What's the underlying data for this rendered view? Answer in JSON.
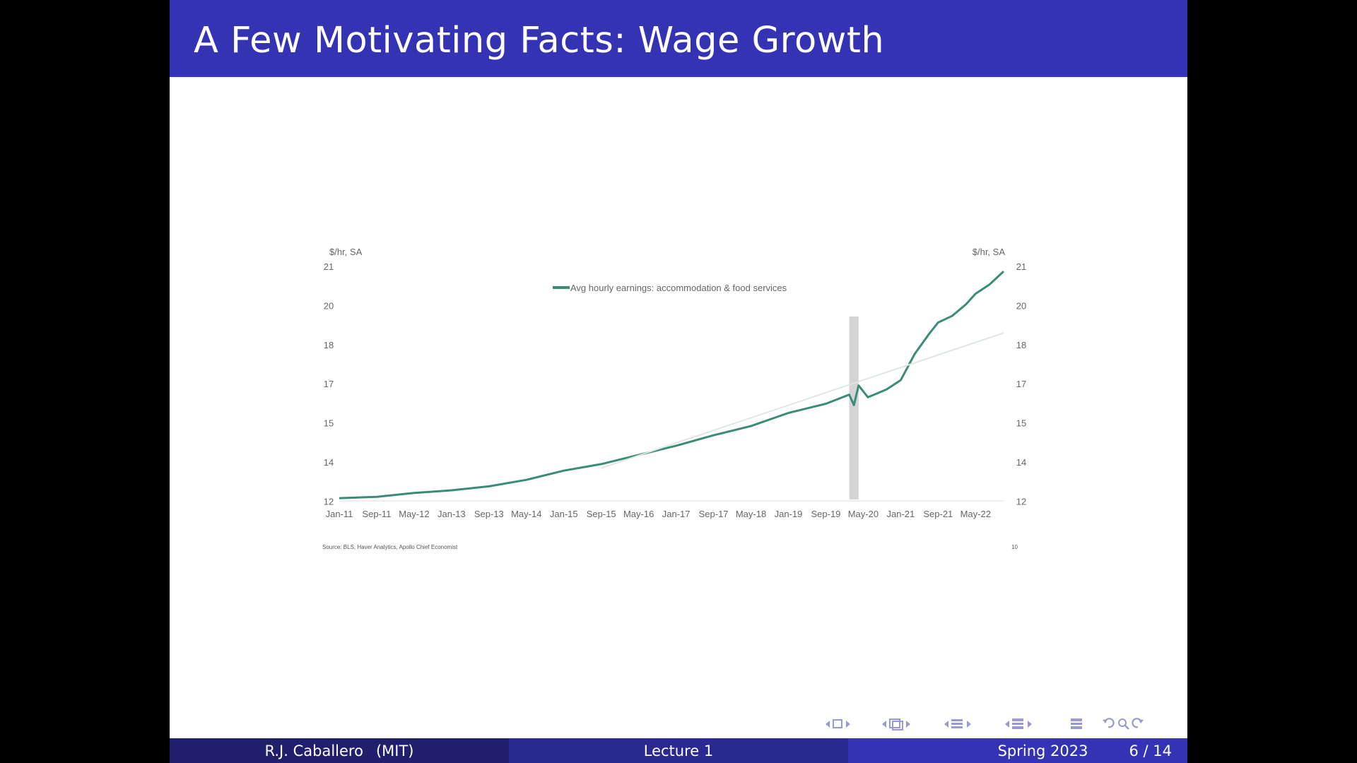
{
  "slide": {
    "title": "A Few Motivating Facts: Wage Growth"
  },
  "footer": {
    "author": "R.J. Caballero",
    "institution": "(MIT)",
    "lecture": "Lecture 1",
    "term": "Spring 2023",
    "page": "6 / 14"
  },
  "colors": {
    "title_bar": "#3333b3",
    "series_line": "#3a8c78",
    "trend_line": "#dfe7e3",
    "recession_bar": "#d4d4d4"
  },
  "nav_icons": [
    "nav-frame-icon",
    "nav-subsection-icon",
    "nav-section-icon",
    "nav-presentation-icon",
    "nav-toc-icon",
    "nav-back-icon",
    "nav-search-icon",
    "nav-forward-icon"
  ],
  "chart_data": {
    "type": "line",
    "left_axis_unit": "$/hr, SA",
    "right_axis_unit": "$/hr, SA",
    "y_tick_labels": [
      "21",
      "20",
      "18",
      "17",
      "15",
      "14",
      "12"
    ],
    "x_tick_labels": [
      "Jan-11",
      "Sep-11",
      "May-12",
      "Jan-13",
      "Sep-13",
      "May-14",
      "Jan-15",
      "Sep-15",
      "May-16",
      "Jan-17",
      "Sep-17",
      "May-18",
      "Jan-19",
      "Sep-19",
      "May-20",
      "Jan-21",
      "Sep-21",
      "May-22"
    ],
    "legend": "Avg hourly earnings: accommodation & food services",
    "legend_position": "top-center",
    "source": "Source: BLS, Haver Analytics, Apollo Chief Economist",
    "page_mark": "10",
    "grid": false,
    "recession_shading": {
      "start": "Feb-20",
      "end": "Apr-20"
    },
    "series": [
      {
        "name": "Avg hourly earnings: accommodation & food services",
        "x": [
          "Jan-11",
          "Sep-11",
          "May-12",
          "Jan-13",
          "Sep-13",
          "May-14",
          "Jan-15",
          "Sep-15",
          "May-16",
          "Jan-17",
          "Sep-17",
          "May-18",
          "Jan-19",
          "Sep-19",
          "Feb-20",
          "Mar-20",
          "Apr-20",
          "Jun-20",
          "Aug-20",
          "Oct-20",
          "Jan-21",
          "Apr-21",
          "Jul-21",
          "Sep-21",
          "Dec-21",
          "Mar-22",
          "May-22",
          "Aug-22",
          "Nov-22"
        ],
        "values": [
          12.05,
          12.1,
          12.25,
          12.35,
          12.5,
          12.75,
          13.1,
          13.35,
          13.7,
          14.05,
          14.45,
          14.8,
          15.3,
          15.65,
          16.0,
          15.6,
          16.35,
          15.9,
          16.05,
          16.2,
          16.55,
          17.55,
          18.3,
          18.75,
          19.0,
          19.45,
          19.85,
          20.2,
          20.7
        ]
      },
      {
        "name": "",
        "style": "trend",
        "x": [
          "Sep-15",
          "Nov-22"
        ],
        "values": [
          13.2,
          18.35
        ]
      }
    ]
  }
}
